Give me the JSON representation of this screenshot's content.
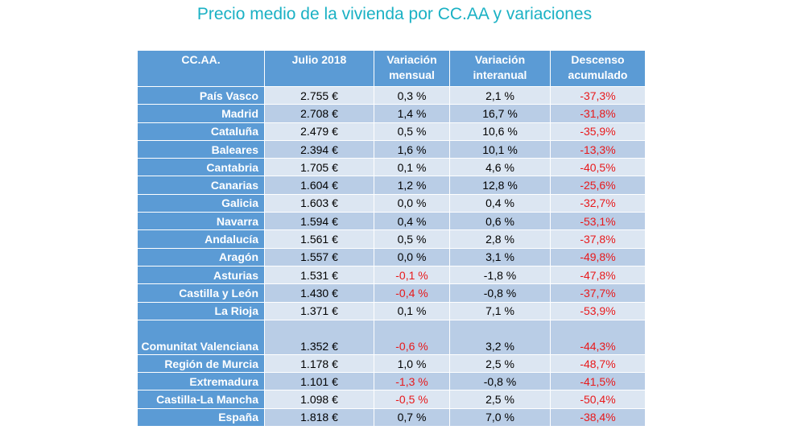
{
  "title": "Precio medio de la vivienda por CC.AA y variaciones",
  "colors": {
    "title": "#1ab1c4",
    "header_bg": "#5b9bd5",
    "row_light": "#dce6f2",
    "row_dark": "#b9cde6",
    "negative": "#e8191b"
  },
  "table": {
    "headers": [
      "CC.AA.",
      "Julio 2018",
      "Variación mensual",
      "Variación interanual",
      "Descenso acumulado"
    ],
    "rows": [
      {
        "region": "País Vasco",
        "price": "2.755 €",
        "monthly": "0,3 %",
        "annual": "2,1 %",
        "drop": "-37,3%"
      },
      {
        "region": "Madrid",
        "price": "2.708 €",
        "monthly": "1,4 %",
        "annual": "16,7 %",
        "drop": "-31,8%"
      },
      {
        "region": "Cataluña",
        "price": "2.479 €",
        "monthly": "0,5 %",
        "annual": "10,6 %",
        "drop": "-35,9%"
      },
      {
        "region": "Baleares",
        "price": "2.394 €",
        "monthly": "1,6 %",
        "annual": "10,1 %",
        "drop": "-13,3%"
      },
      {
        "region": "Cantabria",
        "price": "1.705 €",
        "monthly": "0,1 %",
        "annual": "4,6 %",
        "drop": "-40,5%"
      },
      {
        "region": "Canarias",
        "price": "1.604 €",
        "monthly": "1,2 %",
        "annual": "12,8 %",
        "drop": "-25,6%"
      },
      {
        "region": "Galicia",
        "price": "1.603 €",
        "monthly": "0,0 %",
        "annual": "0,4 %",
        "drop": "-32,7%"
      },
      {
        "region": "Navarra",
        "price": "1.594 €",
        "monthly": "0,4 %",
        "annual": "0,6 %",
        "drop": "-53,1%"
      },
      {
        "region": "Andalucía",
        "price": "1.561 €",
        "monthly": "0,5 %",
        "annual": "2,8 %",
        "drop": "-37,8%"
      },
      {
        "region": "Aragón",
        "price": "1.557 €",
        "monthly": "0,0 %",
        "annual": "3,1 %",
        "drop": "-49,8%"
      },
      {
        "region": "Asturias",
        "price": "1.531 €",
        "monthly": "-0,1 %",
        "annual": "-1,8 %",
        "drop": "-47,8%"
      },
      {
        "region": "Castilla y León",
        "price": "1.430 €",
        "monthly": "-0,4 %",
        "annual": "-0,8 %",
        "drop": "-37,7%"
      },
      {
        "region": "La Rioja",
        "price": "1.371 €",
        "monthly": "0,1 %",
        "annual": "7,1 %",
        "drop": "-53,9%"
      },
      {
        "region": "Comunitat Valenciana",
        "price": "1.352 €",
        "monthly": "-0,6 %",
        "annual": "3,2 %",
        "drop": "-44,3%"
      },
      {
        "region": "Región de Murcia",
        "price": "1.178 €",
        "monthly": "1,0 %",
        "annual": "2,5 %",
        "drop": "-48,7%"
      },
      {
        "region": "Extremadura",
        "price": "1.101 €",
        "monthly": "-1,3 %",
        "annual": "-0,8 %",
        "drop": "-41,5%"
      },
      {
        "region": "Castilla-La Mancha",
        "price": "1.098 €",
        "monthly": "-0,5 %",
        "annual": "2,5 %",
        "drop": "-50,4%"
      },
      {
        "region": "España",
        "price": "1.818 €",
        "monthly": "0,7 %",
        "annual": "7,0 %",
        "drop": "-38,4%"
      }
    ]
  }
}
